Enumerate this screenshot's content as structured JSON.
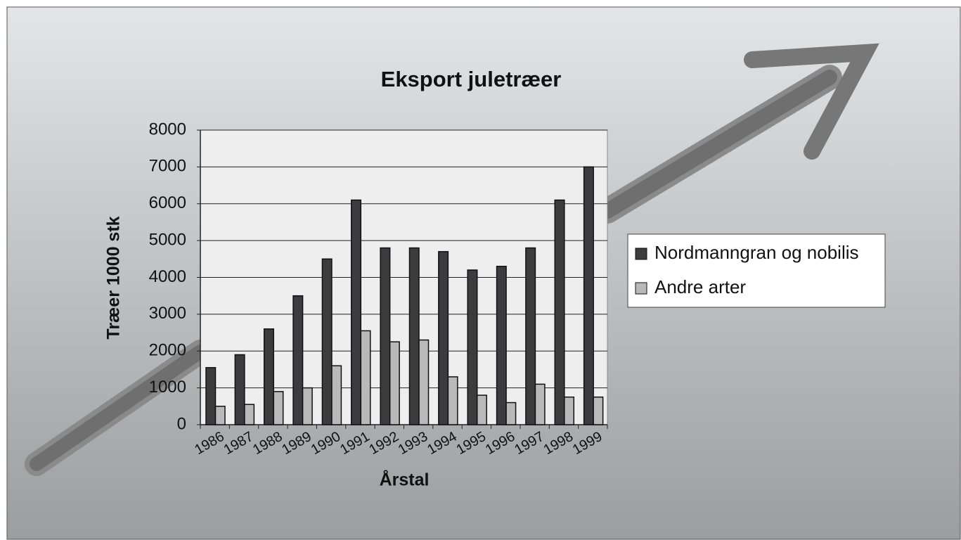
{
  "chart_data": {
    "type": "bar",
    "title": "Eksport juletræer",
    "x_label": "Årstal",
    "y_label": "Træer 1000 stk",
    "categories": [
      "1986",
      "1987",
      "1988",
      "1989",
      "1990",
      "1991",
      "1992",
      "1993",
      "1994",
      "1995",
      "1996",
      "1997",
      "1998",
      "1999"
    ],
    "series": [
      {
        "name": "Nordmanngran og nobilis",
        "color": "#3c3c3e",
        "values": [
          1550,
          1900,
          2600,
          3500,
          4500,
          6100,
          4800,
          4800,
          4700,
          4200,
          4300,
          4800,
          6100,
          7000
        ]
      },
      {
        "name": "Andre arter",
        "color": "#b9b9b9",
        "values": [
          500,
          550,
          900,
          1000,
          1600,
          2550,
          2250,
          2300,
          1300,
          800,
          600,
          1100,
          750,
          750
        ]
      }
    ],
    "ylim": [
      0,
      8000
    ],
    "yticks": [
      0,
      1000,
      2000,
      3000,
      4000,
      5000,
      6000,
      7000,
      8000
    ],
    "grid": true,
    "legend": "right"
  }
}
